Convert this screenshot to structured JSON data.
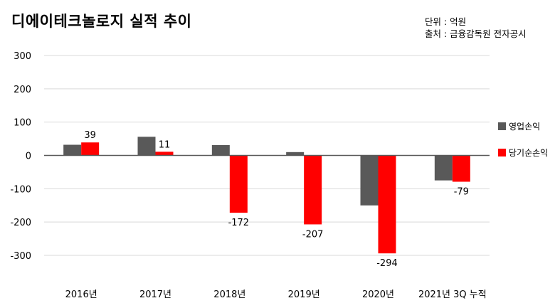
{
  "title": "디에이테크놀로지 실적 추이",
  "unit_label": "단위 : 억원",
  "source_label": "출처 : 금융감독원 전자공시",
  "colors": {
    "operating": "#595959",
    "net": "#ff0000",
    "grid": "#d9d9d9",
    "axis": "#595959"
  },
  "chart_data": {
    "type": "bar",
    "categories": [
      "2016년",
      "2017년",
      "2018년",
      "2019년",
      "2020년",
      "2021년 3Q 누적"
    ],
    "series": [
      {
        "name": "영업손익",
        "values": [
          32,
          56,
          31,
          10,
          -150,
          -75
        ]
      },
      {
        "name": "당기순손익",
        "values": [
          39,
          11,
          -172,
          -207,
          -294,
          -79
        ]
      }
    ],
    "data_labels": [
      "39",
      "11",
      "-172",
      "-207",
      "-294",
      "-79"
    ],
    "yticks": [
      "300",
      "200",
      "100",
      "0",
      "-100",
      "-200",
      "-300"
    ],
    "ylim": [
      -300,
      300
    ],
    "grid": true,
    "legend_position": "right"
  }
}
